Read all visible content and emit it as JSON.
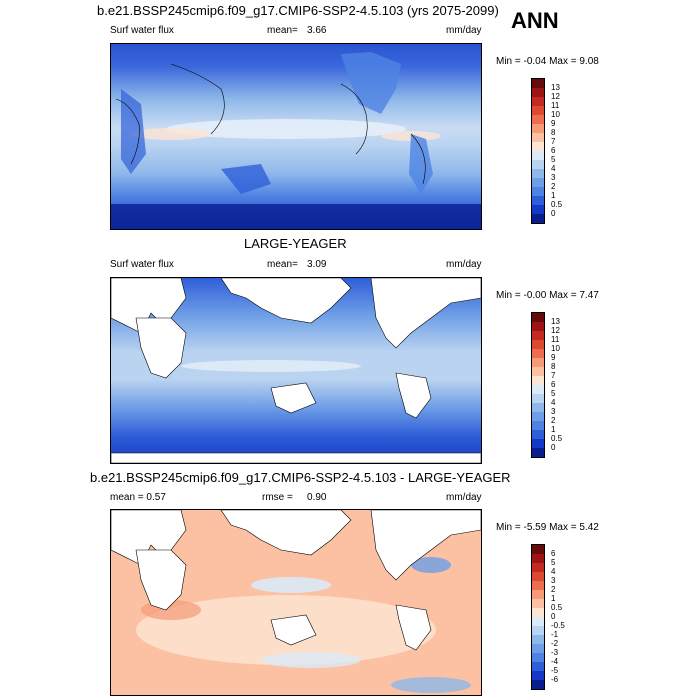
{
  "panels": [
    {
      "title": "b.e21.BSSP245cmip6.f09_g17.CMIP6-SSP2-4.5.103 (yrs 2075-2099)",
      "left_label": "Surf water flux",
      "stat_label": "mean=",
      "stat_value": "3.66",
      "units": "mm/day",
      "minmax": "Min = -0.04 Max =  9.08",
      "colorbar": {
        "labels": [
          "13",
          "12",
          "11",
          "10",
          "9",
          "8",
          "7",
          "6",
          "5",
          "4",
          "3",
          "2",
          "1",
          "0.5",
          "0"
        ],
        "colors": [
          "#670a0a",
          "#9c1414",
          "#c42b20",
          "#dc4a32",
          "#ec6e4f",
          "#f69a77",
          "#fbc1a2",
          "#fde5d3",
          "#dce9f7",
          "#b9d3f1",
          "#8fb8ea",
          "#6e9ee6",
          "#4f83e3",
          "#2f5fd8",
          "#1539c6",
          "#081e8e"
        ]
      },
      "style": "model"
    },
    {
      "title": "LARGE-YEAGER",
      "left_label": "Surf water flux",
      "stat_label": "mean=",
      "stat_value": "3.09",
      "units": "mm/day",
      "minmax": "Min = -0.00 Max =  7.47",
      "colorbar": {
        "labels": [
          "13",
          "12",
          "11",
          "10",
          "9",
          "8",
          "7",
          "6",
          "5",
          "4",
          "3",
          "2",
          "1",
          "0.5",
          "0"
        ],
        "colors": [
          "#670a0a",
          "#9c1414",
          "#c42b20",
          "#dc4a32",
          "#ec6e4f",
          "#f69a77",
          "#fbc1a2",
          "#fde5d3",
          "#dce9f7",
          "#b9d3f1",
          "#8fb8ea",
          "#6e9ee6",
          "#4f83e3",
          "#2f5fd8",
          "#1539c6",
          "#081e8e"
        ]
      },
      "style": "obs"
    },
    {
      "title": "b.e21.BSSP245cmip6.f09_g17.CMIP6-SSP2-4.5.103 - LARGE-YEAGER",
      "left_label": "mean =   0.57",
      "stat_label": "rmse =",
      "stat_value": "0.90",
      "units": "mm/day",
      "minmax": "Min = -5.59 Max =  5.42",
      "colorbar": {
        "labels": [
          "6",
          "5",
          "4",
          "3",
          "2",
          "1",
          "0.5",
          "0",
          "-0.5",
          "-1",
          "-2",
          "-3",
          "-4",
          "-5",
          "-6"
        ],
        "colors": [
          "#670a0a",
          "#9c1414",
          "#c42b20",
          "#dc4a32",
          "#ec6e4f",
          "#f69a77",
          "#fbc1a2",
          "#fde5d3",
          "#dce9f7",
          "#b9d3f1",
          "#8fb8ea",
          "#6e9ee6",
          "#4f83e3",
          "#2f5fd8",
          "#1539c6",
          "#081e8e"
        ]
      },
      "style": "diff"
    }
  ],
  "season": "ANN"
}
